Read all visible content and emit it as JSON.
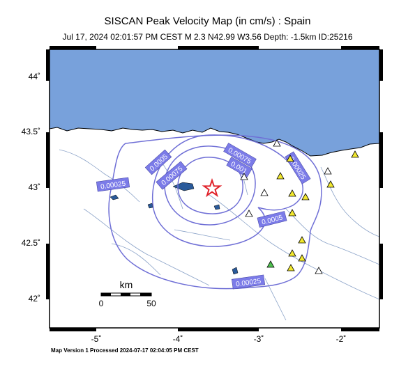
{
  "header": {
    "title": "SISCAN Peak Velocity Map (in cm/s) : Spain",
    "subtitle": "Jul 17, 2024 02:01:57 PM CEST   M 2.3   N42.99 W3.56   Depth: -1.5km   ID:25216"
  },
  "axes": {
    "lat_ticks": [
      "44˚",
      "43.5˚",
      "43˚",
      "42.5˚",
      "42˚"
    ],
    "lon_ticks": [
      "-5˚",
      "-4˚",
      "-3˚",
      "-2˚"
    ]
  },
  "contours": {
    "labels": [
      "0.00025",
      "0.0005",
      "0.00075",
      "0.00075",
      "0.001",
      "0.0005",
      "0.00025",
      "0.00025",
      "0.00025"
    ]
  },
  "scale_bar": {
    "unit": "km",
    "start": "0",
    "end": "50"
  },
  "footer": "Map Version 1 Processed 2024-07-17 02:04:05 PM CEST",
  "colors": {
    "sea": "#78a1db",
    "contour": "#6f6fd6",
    "label_box": "#7b7be8",
    "epicenter": "#e0222a",
    "station_yellow": "#f2e82e",
    "station_white": "#ffffff",
    "station_green": "#4ec04e"
  }
}
